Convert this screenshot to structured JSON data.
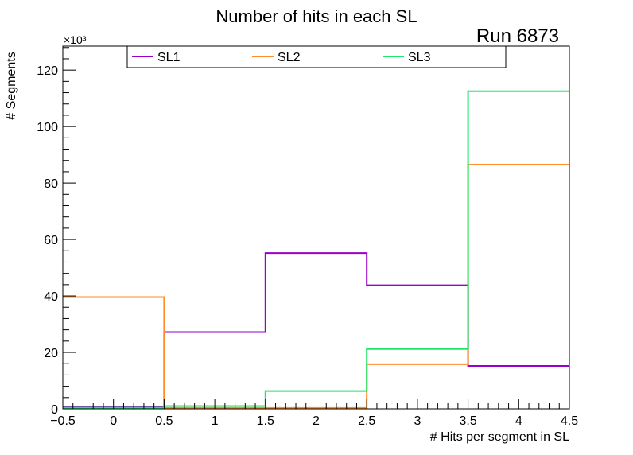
{
  "chart_data": {
    "type": "histogram",
    "title": "Number of hits in each SL",
    "run_label": "Run 6873",
    "xlabel": "# Hits per segment in SL",
    "ylabel": "# Segments",
    "y_exponent_label": "×10³",
    "xlim": [
      -0.5,
      4.5
    ],
    "ylim": [
      0,
      128.5
    ],
    "x_ticks": [
      -0.5,
      0,
      0.5,
      1,
      1.5,
      2,
      2.5,
      3,
      3.5,
      4,
      4.5
    ],
    "x_tick_labels": [
      "−0.5",
      "0",
      "0.5",
      "1",
      "1.5",
      "2",
      "2.5",
      "3",
      "3.5",
      "4",
      "4.5"
    ],
    "y_ticks": [
      0,
      20,
      40,
      60,
      80,
      100,
      120
    ],
    "y_tick_labels": [
      "0",
      "20",
      "40",
      "60",
      "80",
      "100",
      "120"
    ],
    "bin_edges": [
      -0.5,
      0.5,
      1.5,
      2.5,
      3.5,
      4.5
    ],
    "legend_position": "top",
    "series": [
      {
        "name": "SL1",
        "color": "#9900cc",
        "values": [
          0.8,
          27.2,
          55.2,
          43.8,
          15.2
        ]
      },
      {
        "name": "SL2",
        "color": "#ff8c2a",
        "values": [
          39.6,
          0.3,
          0.3,
          15.8,
          86.5
        ]
      },
      {
        "name": "SL3",
        "color": "#1ee86b",
        "values": [
          0.4,
          1.0,
          6.3,
          21.2,
          112.5
        ]
      }
    ]
  }
}
